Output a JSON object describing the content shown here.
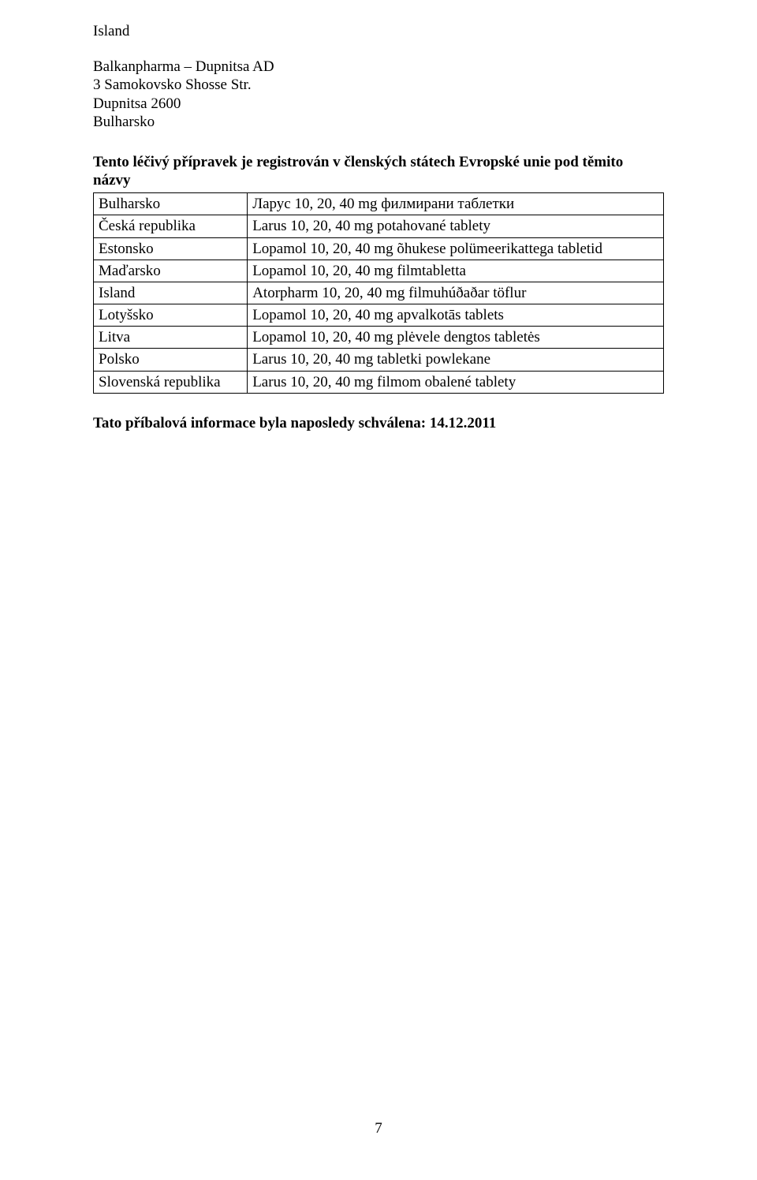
{
  "heading_country": "Island",
  "mfr_line1": "Balkanpharma – Dupnitsa AD",
  "mfr_line2": "3 Samokovsko Shosse Str.",
  "mfr_line3": "Dupnitsa 2600",
  "mfr_line4": "Bulharsko",
  "registration_sentence": "Tento léčivý přípravek je registrován v členských státech Evropské unie pod těmito názvy",
  "rows": [
    {
      "country": "Bulharsko",
      "name": "Ларус 10, 20, 40 mg филмирани таблетки"
    },
    {
      "country": "Česká republika",
      "name": "Larus 10, 20, 40 mg potahované tablety"
    },
    {
      "country": "Estonsko",
      "name": "Lopamol 10, 20, 40 mg õhukese polümeerikattega tabletid"
    },
    {
      "country": "Maďarsko",
      "name": "Lopamol 10, 20, 40 mg filmtabletta"
    },
    {
      "country": "Island",
      "name": "Atorpharm 10, 20, 40 mg filmuhúðaðar töflur"
    },
    {
      "country": "Lotyšsko",
      "name": "Lopamol 10, 20, 40 mg apvalkotās tablets"
    },
    {
      "country": "Litva",
      "name": "Lopamol 10, 20, 40 mg plėvele dengtos tabletės"
    },
    {
      "country": "Polsko",
      "name": "Larus 10, 20, 40 mg tabletki powlekane"
    },
    {
      "country": "Slovenská republika",
      "name": "Larus 10, 20, 40 mg filmom obalené tablety"
    }
  ],
  "approval_line": "Tato příbalová informace byla naposledy schválena: 14.12.2011",
  "page_number": "7"
}
